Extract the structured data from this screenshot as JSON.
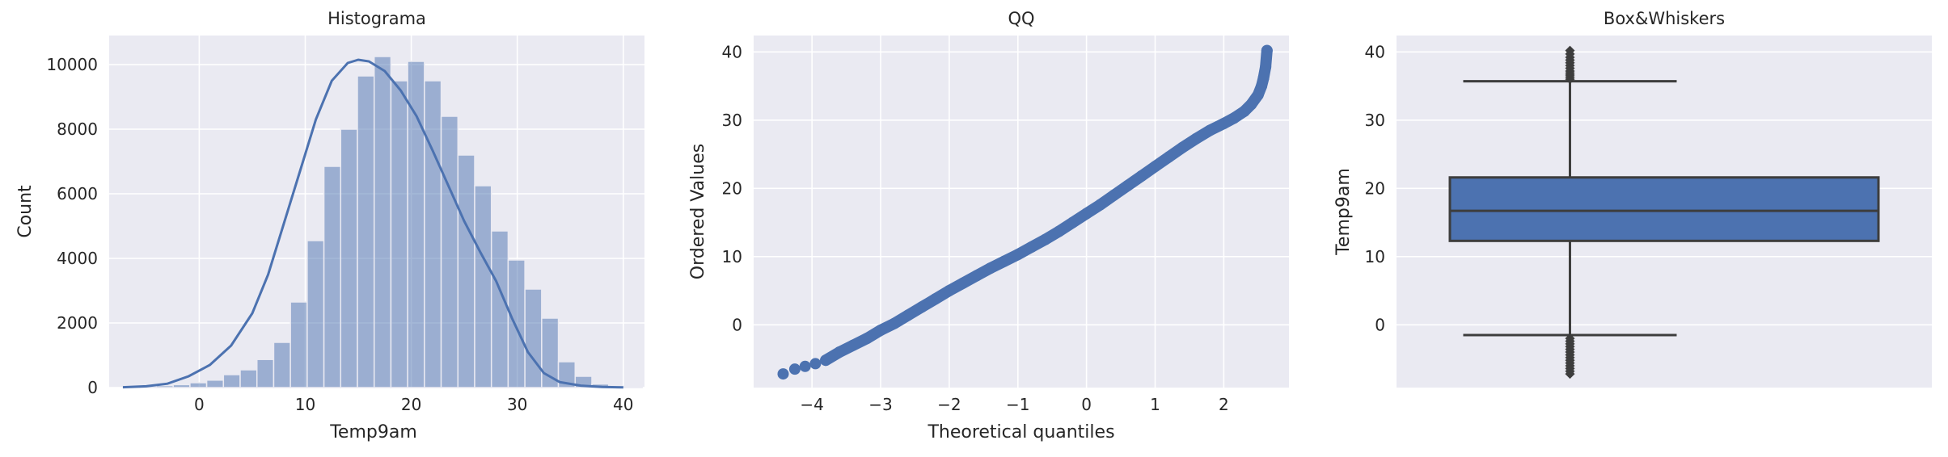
{
  "chart_data": [
    {
      "type": "bar",
      "title": "Histograma",
      "xlabel": "Temp9am",
      "ylabel": "Count",
      "xlim": [
        -8.5,
        42
      ],
      "ylim": [
        0,
        10900
      ],
      "xticks": [
        0,
        10,
        20,
        30,
        40
      ],
      "yticks": [
        0,
        2000,
        4000,
        6000,
        8000,
        10000
      ],
      "grid": true,
      "bars": {
        "x_start": -7.2,
        "bin_width": 1.58,
        "counts": [
          30,
          40,
          60,
          90,
          150,
          230,
          400,
          550,
          870,
          1400,
          2650,
          4550,
          6850,
          8000,
          9650,
          10250,
          9500,
          10100,
          9500,
          8400,
          7200,
          6250,
          4850,
          3950,
          3050,
          2150,
          800,
          350,
          110,
          40,
          10
        ]
      },
      "kde": [
        [
          -7.2,
          10
        ],
        [
          -5,
          40
        ],
        [
          -3,
          120
        ],
        [
          -1,
          350
        ],
        [
          1,
          700
        ],
        [
          3,
          1300
        ],
        [
          5,
          2300
        ],
        [
          6.5,
          3500
        ],
        [
          8,
          5100
        ],
        [
          9.5,
          6700
        ],
        [
          11,
          8300
        ],
        [
          12.5,
          9500
        ],
        [
          14,
          10050
        ],
        [
          15,
          10150
        ],
        [
          16,
          10100
        ],
        [
          17.5,
          9800
        ],
        [
          19,
          9200
        ],
        [
          20.5,
          8400
        ],
        [
          22,
          7350
        ],
        [
          23.5,
          6250
        ],
        [
          25,
          5150
        ],
        [
          26.5,
          4200
        ],
        [
          28,
          3300
        ],
        [
          29.5,
          2150
        ],
        [
          31,
          1100
        ],
        [
          32.5,
          450
        ],
        [
          34,
          170
        ],
        [
          36,
          60
        ],
        [
          38,
          20
        ],
        [
          40,
          5
        ]
      ],
      "bar_color": "#4c72b0",
      "panel_color": "#eaeaf2"
    },
    {
      "type": "scatter",
      "title": "QQ",
      "xlabel": "Theoretical quantiles",
      "ylabel": "Ordered Values",
      "xlim": [
        -4.85,
        2.95
      ],
      "ylim": [
        -9.2,
        42.4
      ],
      "xticks": [
        -4,
        -3,
        -2,
        -1,
        0,
        1,
        2
      ],
      "yticks": [
        0,
        10,
        20,
        30,
        40
      ],
      "grid": true,
      "points": [
        [
          -4.42,
          -7.2
        ],
        [
          -4.25,
          -6.5
        ],
        [
          -4.1,
          -6.1
        ],
        [
          -3.95,
          -5.7
        ],
        [
          -3.8,
          -5.2
        ],
        [
          -3.6,
          -4.0
        ],
        [
          -3.4,
          -3.0
        ],
        [
          -3.2,
          -2.0
        ],
        [
          -3.0,
          -0.8
        ],
        [
          -2.8,
          0.2
        ],
        [
          -2.6,
          1.4
        ],
        [
          -2.4,
          2.6
        ],
        [
          -2.2,
          3.8
        ],
        [
          -2.0,
          5.0
        ],
        [
          -1.8,
          6.1
        ],
        [
          -1.6,
          7.2
        ],
        [
          -1.4,
          8.3
        ],
        [
          -1.2,
          9.3
        ],
        [
          -1.0,
          10.3
        ],
        [
          -0.8,
          11.4
        ],
        [
          -0.6,
          12.5
        ],
        [
          -0.4,
          13.7
        ],
        [
          -0.2,
          15.0
        ],
        [
          0.0,
          16.3
        ],
        [
          0.2,
          17.6
        ],
        [
          0.4,
          19.0
        ],
        [
          0.6,
          20.4
        ],
        [
          0.8,
          21.8
        ],
        [
          1.0,
          23.2
        ],
        [
          1.2,
          24.6
        ],
        [
          1.4,
          26.0
        ],
        [
          1.6,
          27.3
        ],
        [
          1.8,
          28.5
        ],
        [
          2.0,
          29.5
        ],
        [
          2.15,
          30.3
        ],
        [
          2.3,
          31.3
        ],
        [
          2.4,
          32.3
        ],
        [
          2.5,
          33.7
        ],
        [
          2.55,
          35.0
        ],
        [
          2.58,
          36.2
        ],
        [
          2.61,
          37.8
        ],
        [
          2.63,
          40.2
        ]
      ],
      "marker_color": "#4c72b0"
    },
    {
      "type": "box",
      "title": "Box&Whiskers",
      "ylabel": "Temp9am",
      "ylim": [
        -9.2,
        42.4
      ],
      "yticks": [
        0,
        10,
        20,
        30,
        40
      ],
      "grid": true,
      "box": {
        "q1": 12.3,
        "median": 16.7,
        "q3": 21.6,
        "whisker_low": -1.5,
        "whisker_high": 35.7
      },
      "outliers_high": [
        36.0,
        36.3,
        36.6,
        36.9,
        37.2,
        37.6,
        38.0,
        38.4,
        38.8,
        39.2,
        39.7,
        40.2
      ],
      "outliers_low": [
        -2.0,
        -2.4,
        -2.8,
        -3.2,
        -3.6,
        -4.0,
        -4.4,
        -4.8,
        -5.2,
        -5.6,
        -6.0,
        -6.4,
        -6.8,
        -7.2
      ],
      "box_color": "#4c72b0"
    }
  ]
}
